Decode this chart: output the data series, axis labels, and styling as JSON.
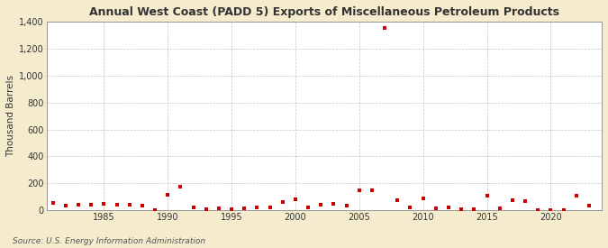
{
  "title": "Annual West Coast (PADD 5) Exports of Miscellaneous Petroleum Products",
  "ylabel": "Thousand Barrels",
  "source": "Source: U.S. Energy Information Administration",
  "background_color": "#f5ecce",
  "plot_bg_color": "#ffffff",
  "marker_color": "#cc0000",
  "grid_color": "#aaaaaa",
  "xlim": [
    1980.5,
    2024
  ],
  "ylim": [
    0,
    1400
  ],
  "yticks": [
    0,
    200,
    400,
    600,
    800,
    1000,
    1200,
    1400
  ],
  "xticks": [
    1985,
    1990,
    1995,
    2000,
    2005,
    2010,
    2015,
    2020
  ],
  "years": [
    1981,
    1982,
    1983,
    1984,
    1985,
    1986,
    1987,
    1988,
    1989,
    1990,
    1991,
    1992,
    1993,
    1994,
    1995,
    1996,
    1997,
    1998,
    1999,
    2000,
    2001,
    2002,
    2003,
    2004,
    2005,
    2006,
    2007,
    2008,
    2009,
    2010,
    2011,
    2012,
    2013,
    2014,
    2015,
    2016,
    2017,
    2018,
    2019,
    2020,
    2021,
    2022,
    2023
  ],
  "values": [
    55,
    35,
    40,
    45,
    50,
    45,
    40,
    35,
    5,
    115,
    175,
    20,
    10,
    15,
    10,
    15,
    20,
    20,
    60,
    80,
    25,
    45,
    50,
    35,
    150,
    150,
    1350,
    75,
    25,
    90,
    15,
    20,
    10,
    10,
    110,
    15,
    75,
    70,
    5,
    5,
    5,
    110,
    35
  ]
}
